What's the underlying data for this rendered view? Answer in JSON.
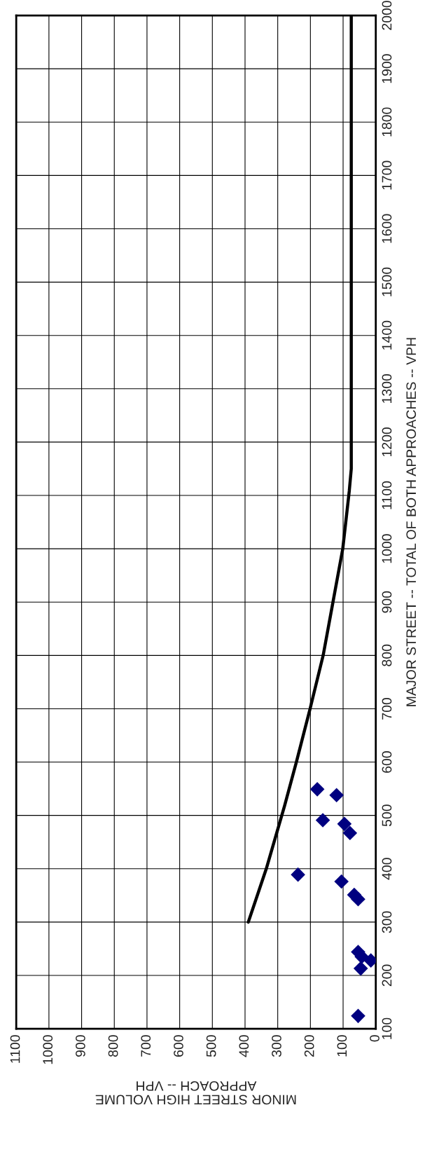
{
  "chart_data": {
    "type": "scatter",
    "xlabel": "MINOR STREET HIGH VOLUME\nAPPROACH -- VPH",
    "ylabel": "MAJOR STREET -- TOTAL OF BOTH APPROACHES -- VPH",
    "ylim": [
      100,
      2000
    ],
    "yticks": [
      100,
      200,
      300,
      400,
      500,
      600,
      700,
      800,
      900,
      1000,
      1100,
      1200,
      1300,
      1400,
      1500,
      1600,
      1700,
      1800,
      1900,
      2000
    ],
    "xlim": [
      1100,
      0
    ],
    "xticks": [
      0,
      100,
      200,
      300,
      400,
      500,
      600,
      700,
      800,
      900,
      1000,
      1100
    ],
    "grid": true,
    "series": [
      {
        "color": "#000080",
        "marker": "diamond",
        "values": [
          549,
          538,
          491,
          484,
          467,
          389,
          376,
          351,
          343,
          244,
          235,
          228,
          213,
          124
        ],
        "x": [
          179,
          120,
          162,
          96,
          79,
          238,
          105,
          66,
          54,
          54,
          43,
          15,
          46,
          54
        ]
      },
      {
        "type": "line",
        "color": "#000000",
        "marker": "none",
        "line_style": "solid",
        "values": [
          300,
          400,
          518,
          600,
          700,
          800,
          900,
          1000,
          1109,
          1150,
          2000
        ],
        "x": [
          390,
          335,
          279,
          243,
          201,
          161,
          131,
          101,
          81,
          75,
          75
        ]
      }
    ]
  }
}
